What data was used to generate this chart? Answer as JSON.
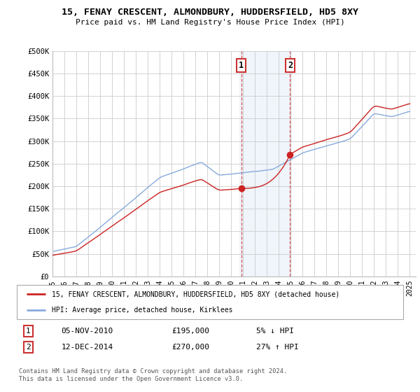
{
  "title": "15, FENAY CRESCENT, ALMONDBURY, HUDDERSFIELD, HD5 8XY",
  "subtitle": "Price paid vs. HM Land Registry's House Price Index (HPI)",
  "ylim": [
    0,
    500000
  ],
  "yticks": [
    0,
    50000,
    100000,
    150000,
    200000,
    250000,
    300000,
    350000,
    400000,
    450000,
    500000
  ],
  "ytick_labels": [
    "£0",
    "£50K",
    "£100K",
    "£150K",
    "£200K",
    "£250K",
    "£300K",
    "£350K",
    "£400K",
    "£450K",
    "£500K"
  ],
  "xlim_start": 1995.0,
  "xlim_end": 2025.5,
  "xticks": [
    1995,
    1996,
    1997,
    1998,
    1999,
    2000,
    2001,
    2002,
    2003,
    2004,
    2005,
    2006,
    2007,
    2008,
    2009,
    2010,
    2011,
    2012,
    2013,
    2014,
    2015,
    2016,
    2017,
    2018,
    2019,
    2020,
    2021,
    2022,
    2023,
    2024,
    2025
  ],
  "sale1_x": 2010.84,
  "sale1_y": 195000,
  "sale2_x": 2014.95,
  "sale2_y": 270000,
  "highlight_xmin": 2010.7,
  "highlight_xmax": 2015.1,
  "hpi_line_color": "#88aadd",
  "house_line_color": "#cc2222",
  "legend_house_label": "15, FENAY CRESCENT, ALMONDBURY, HUDDERSFIELD, HD5 8XY (detached house)",
  "legend_hpi_label": "HPI: Average price, detached house, Kirklees",
  "annotation1_label": "1",
  "annotation2_label": "2",
  "table_row1": [
    "1",
    "05-NOV-2010",
    "£195,000",
    "5% ↓ HPI"
  ],
  "table_row2": [
    "2",
    "12-DEC-2014",
    "£270,000",
    "27% ↑ HPI"
  ],
  "footer": "Contains HM Land Registry data © Crown copyright and database right 2024.\nThis data is licensed under the Open Government Licence v3.0.",
  "background_color": "#ffffff",
  "plot_bg_color": "#ffffff",
  "grid_color": "#cccccc"
}
